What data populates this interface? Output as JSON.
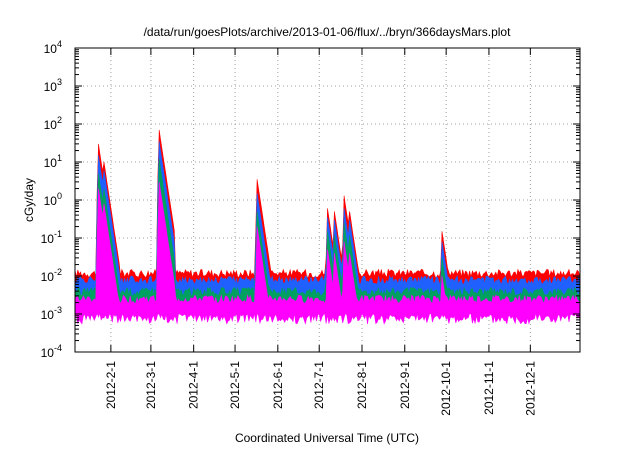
{
  "chart_data": {
    "type": "area",
    "title": "/data/run/goesPlots/archive/2013-01-06/flux/../bryn/366daysMars.plot",
    "xlabel": "Coordinated Universal Time (UTC)",
    "ylabel": "cGy/day",
    "y_scale": "log",
    "ylim": [
      0.0001,
      10000
    ],
    "xlim": [
      "2012-01-06",
      "2013-01-06"
    ],
    "grid": true,
    "y_ticks": [
      {
        "value": 0.0001,
        "base": "10",
        "exp": "-4"
      },
      {
        "value": 0.001,
        "base": "10",
        "exp": "-3"
      },
      {
        "value": 0.01,
        "base": "10",
        "exp": "-2"
      },
      {
        "value": 0.1,
        "base": "10",
        "exp": "-1"
      },
      {
        "value": 1,
        "base": "10",
        "exp": "0"
      },
      {
        "value": 10,
        "base": "10",
        "exp": "1"
      },
      {
        "value": 100,
        "base": "10",
        "exp": "2"
      },
      {
        "value": 1000,
        "base": "10",
        "exp": "3"
      },
      {
        "value": 10000,
        "base": "10",
        "exp": "4"
      }
    ],
    "x_ticks": [
      "2012-2-1",
      "2012-3-1",
      "2012-4-1",
      "2012-5-1",
      "2012-6-1",
      "2012-7-1",
      "2012-8-1",
      "2012-9-1",
      "2012-10-1",
      "2012-11-1",
      "2012-12-1"
    ],
    "series": [
      {
        "color": "#ff0000",
        "baseline": 0.012,
        "peaks": [
          [
            "2012-01-23",
            30
          ],
          [
            "2012-01-27",
            10
          ],
          [
            "2012-03-07",
            70
          ],
          [
            "2012-05-17",
            3.5
          ],
          [
            "2012-07-07",
            0.6
          ],
          [
            "2012-07-12",
            0.5
          ],
          [
            "2012-07-19",
            1.3
          ],
          [
            "2012-07-23",
            0.5
          ],
          [
            "2012-09-28",
            0.15
          ]
        ]
      },
      {
        "color": "#2060ff",
        "baseline": 0.008,
        "peaks": [
          [
            "2012-01-23",
            15
          ],
          [
            "2012-01-27",
            6
          ],
          [
            "2012-03-07",
            35
          ],
          [
            "2012-05-17",
            1.5
          ],
          [
            "2012-07-07",
            0.35
          ],
          [
            "2012-07-12",
            0.3
          ],
          [
            "2012-07-19",
            0.6
          ],
          [
            "2012-07-23",
            0.3
          ],
          [
            "2012-09-28",
            0.08
          ]
        ]
      },
      {
        "color": "#00a060",
        "baseline": 0.004,
        "peaks": [
          [
            "2012-01-23",
            5
          ],
          [
            "2012-01-27",
            2
          ],
          [
            "2012-03-07",
            12
          ],
          [
            "2012-05-17",
            0.5
          ],
          [
            "2012-07-07",
            0.15
          ],
          [
            "2012-07-12",
            0.12
          ],
          [
            "2012-07-19",
            0.25
          ],
          [
            "2012-07-23",
            0.12
          ],
          [
            "2012-09-28",
            0.03
          ]
        ]
      },
      {
        "color": "#ff00ff",
        "baseline": 0.0025,
        "peaks": [
          [
            "2012-01-23",
            2
          ],
          [
            "2012-01-27",
            0.8
          ],
          [
            "2012-03-07",
            3
          ],
          [
            "2012-05-17",
            0.2
          ],
          [
            "2012-07-07",
            0.05
          ],
          [
            "2012-07-12",
            0.04
          ],
          [
            "2012-07-19",
            0.08
          ],
          [
            "2012-07-23",
            0.04
          ],
          [
            "2012-09-28",
            0.01
          ]
        ]
      }
    ]
  }
}
